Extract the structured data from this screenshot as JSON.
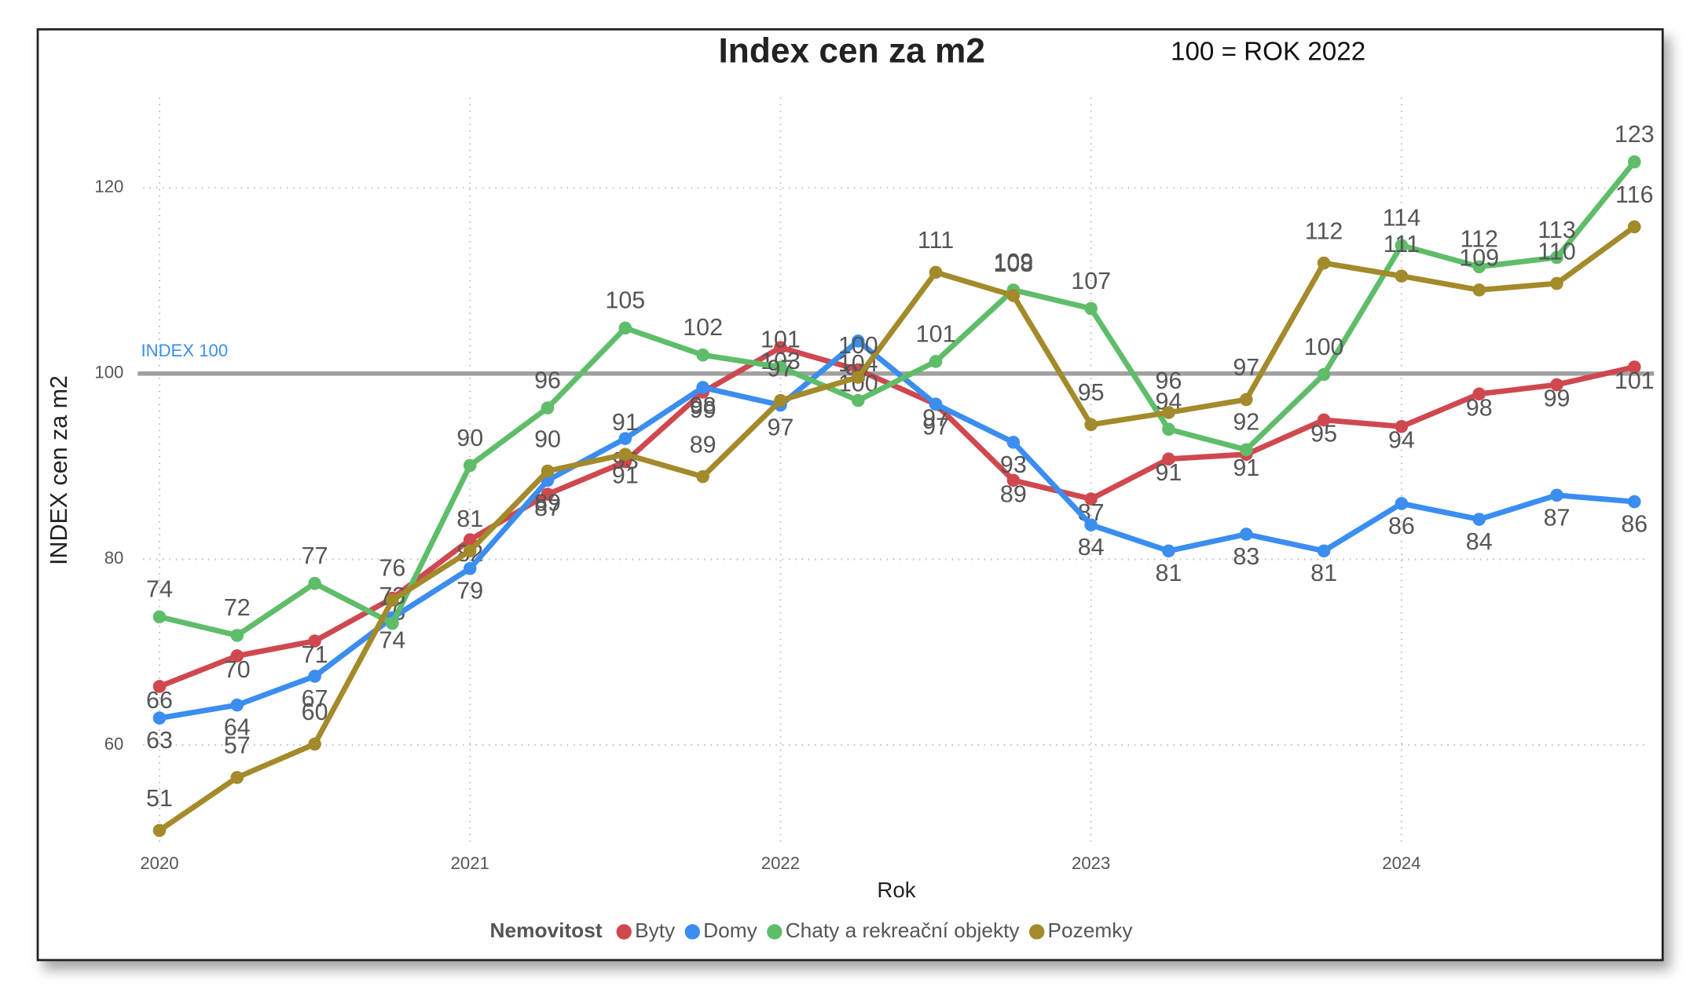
{
  "chart_data": {
    "type": "line",
    "title": "Index cen za m2",
    "annotation": "100 = ROK 2022",
    "x_label": "Rok",
    "y_label": "INDEX cen za m2",
    "legend_title": "Nemovitost",
    "reference_line": {
      "value": 100,
      "label": "INDEX 100",
      "color": "#a0a0a0"
    },
    "x": [
      2020,
      2020.25,
      2020.5,
      2020.75,
      2021,
      2021.25,
      2021.5,
      2021.75,
      2022,
      2022.25,
      2022.5,
      2022.75,
      2023,
      2023.25,
      2023.5,
      2023.75,
      2024,
      2024.25,
      2024.5,
      2024.75
    ],
    "xlim": [
      2020,
      2024.75
    ],
    "xticks": [
      2020,
      2021,
      2022,
      2023,
      2024
    ],
    "ylim": [
      49,
      130
    ],
    "yticks": [
      60,
      80,
      100,
      120
    ],
    "grid": true,
    "series": [
      {
        "name": "Byty",
        "color": "#d0484f",
        "values": [
          66.3,
          69.6,
          71.2,
          75.8,
          82.1,
          87.0,
          90.5,
          98.0,
          102.8,
          100.4,
          96.7,
          88.5,
          86.5,
          90.8,
          91.3,
          95.0,
          94.3,
          97.8,
          98.8,
          100.7
        ],
        "value_labels": [
          "66",
          "70",
          "71",
          "76",
          "82",
          "87",
          "91",
          "98",
          "103",
          "100",
          "97",
          "89",
          "87",
          "91",
          "91",
          "95",
          "94",
          "98",
          "99",
          "101"
        ]
      },
      {
        "name": "Domy",
        "color": "#3b8df0",
        "values": [
          62.9,
          64.3,
          67.4,
          73.7,
          79.0,
          88.5,
          93.0,
          98.5,
          96.6,
          103.5,
          96.7,
          92.6,
          83.7,
          80.9,
          82.7,
          80.9,
          86.0,
          84.3,
          86.9,
          86.2
        ],
        "value_labels": [
          "63",
          "64",
          "67",
          "74",
          "79",
          "89",
          "93",
          "99",
          "97",
          "104",
          "97",
          "93",
          "84",
          "81",
          "83",
          "81",
          "86",
          "84",
          "87",
          "86"
        ]
      },
      {
        "name": "Chaty a rekreační objekty",
        "color": "#5fbd6a",
        "values": [
          73.8,
          71.8,
          77.4,
          73.1,
          90.1,
          96.3,
          104.9,
          102.0,
          100.7,
          97.1,
          101.3,
          109.0,
          107.0,
          94.0,
          91.8,
          99.9,
          113.8,
          111.5,
          112.5,
          122.8
        ],
        "value_labels": [
          "74",
          "72",
          "77",
          "73",
          "90",
          "96",
          "105",
          "102",
          "101",
          "97",
          "101",
          "109",
          "107",
          "94",
          "92",
          "100",
          "114",
          "112",
          "113",
          "123"
        ]
      },
      {
        "name": "Pozemky",
        "color": "#a38a2a",
        "values": [
          50.8,
          56.5,
          60.1,
          75.6,
          80.9,
          89.5,
          91.3,
          88.9,
          97.1,
          99.6,
          110.9,
          108.4,
          94.5,
          95.8,
          97.2,
          111.9,
          110.5,
          109.0,
          109.7,
          115.8
        ],
        "value_labels": [
          "51",
          "57",
          "60",
          "76",
          "81",
          "90",
          "91",
          "89",
          "97",
          "100",
          "111",
          "108",
          "95",
          "96",
          "97",
          "112",
          "111",
          "109",
          "110",
          "116"
        ]
      }
    ]
  }
}
